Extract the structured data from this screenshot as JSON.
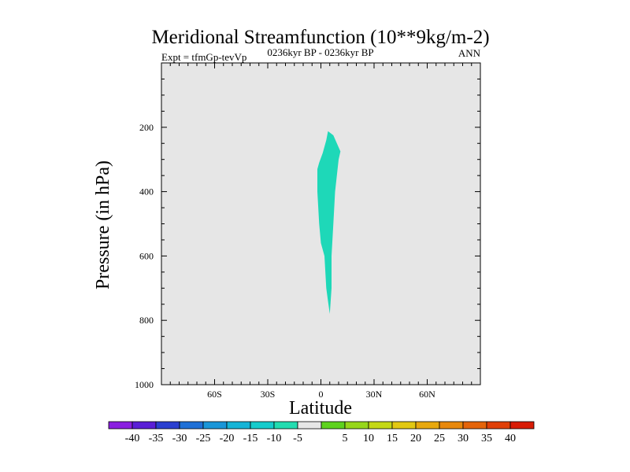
{
  "chart_data": {
    "type": "contour",
    "title": "Meridional Streamfunction (10**9kg/m-2)",
    "left_string": "Expt = tfmGp-tevVp",
    "center_string": "0236kyr BP - 0236kyr BP",
    "right_string": "ANN",
    "xlabel": "Latitude",
    "ylabel": "Pressure (in hPa)",
    "xlim": [
      -90,
      90
    ],
    "ylim": [
      1000,
      0
    ],
    "y_reversed": true,
    "x_ticks": [
      {
        "value": -60,
        "label": "60S"
      },
      {
        "value": -30,
        "label": "30S"
      },
      {
        "value": 0,
        "label": "0"
      },
      {
        "value": 30,
        "label": "30N"
      },
      {
        "value": 60,
        "label": "60N"
      }
    ],
    "y_ticks": [
      {
        "value": 200,
        "label": "200"
      },
      {
        "value": 400,
        "label": "400"
      },
      {
        "value": 600,
        "label": "600"
      },
      {
        "value": 800,
        "label": "800"
      },
      {
        "value": 1000,
        "label": "1000"
      }
    ],
    "background_color": "#e6e6e6",
    "filled_regions": [
      {
        "level_range": [
          -10,
          -5
        ],
        "color": "#1ed8b8",
        "outline": [
          [
            4,
            212
          ],
          [
            7,
            225
          ],
          [
            11,
            275
          ],
          [
            10,
            300
          ],
          [
            8,
            400
          ],
          [
            7,
            500
          ],
          [
            6,
            600
          ],
          [
            6,
            700
          ],
          [
            5,
            780
          ],
          [
            4,
            740
          ],
          [
            3,
            700
          ],
          [
            2,
            600
          ],
          [
            0,
            560
          ],
          [
            -1,
            500
          ],
          [
            -2,
            400
          ],
          [
            -2,
            330
          ],
          [
            -1,
            310
          ],
          [
            1,
            280
          ],
          [
            3,
            240
          ]
        ]
      }
    ],
    "colorbar": {
      "colors": [
        "#8a1fe0",
        "#5a1fd6",
        "#2a3fd0",
        "#1f70d6",
        "#1a96d8",
        "#16b4d6",
        "#16cccc",
        "#22dcb0",
        "#e6e6e6",
        "#5ed21e",
        "#96d61a",
        "#c4d816",
        "#e2c812",
        "#e8a80e",
        "#e8880c",
        "#e4640a",
        "#e04008",
        "#d81c06"
      ],
      "labels": [
        "-40",
        "-35",
        "-30",
        "-25",
        "-20",
        "-15",
        "-10",
        "-5",
        "5",
        "10",
        "15",
        "20",
        "25",
        "30",
        "35",
        "40"
      ]
    }
  }
}
